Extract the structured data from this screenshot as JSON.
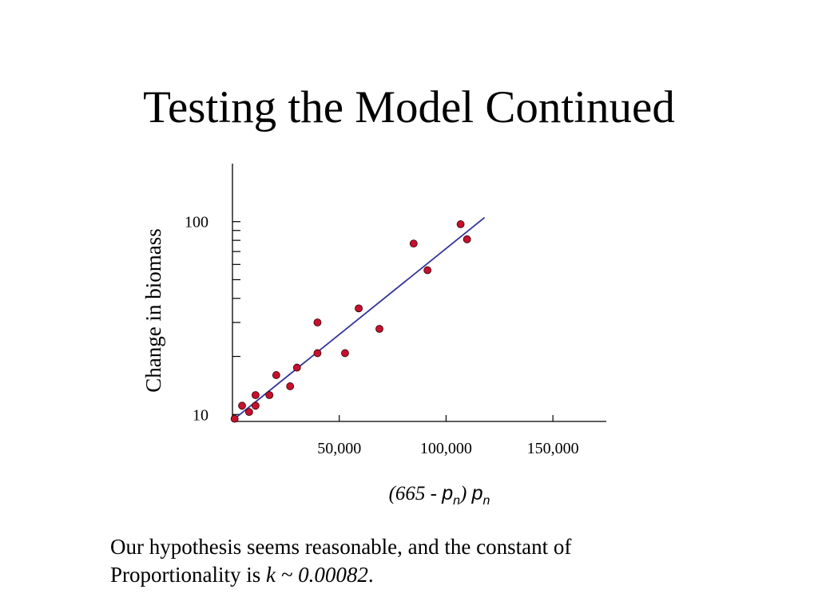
{
  "slide": {
    "title": "Testing the Model Continued",
    "caption_line1": "Our hypothesis seems reasonable, and the constant of",
    "caption_line2_prefix": "Proportionality is ",
    "caption_k": "k ~ 0.00082",
    "caption_suffix": "."
  },
  "chart_data": {
    "type": "scatter",
    "ylabel": "Change in biomass",
    "xlabel_parts": {
      "open": "(665 - ",
      "var1": "p",
      "sub1": "n",
      "close": ") ",
      "var2": "p",
      "sub2": "n"
    },
    "x_scale": "linear",
    "y_scale": "log",
    "xlim": [
      0,
      175000
    ],
    "ylim": [
      9.2,
      200
    ],
    "x_ticks": [
      50000,
      100000,
      150000
    ],
    "x_tick_labels": [
      "50,000",
      "100,000",
      "150,000"
    ],
    "y_ticks": [
      10,
      100
    ],
    "y_tick_labels": [
      "10",
      "100"
    ],
    "grid": false,
    "legend": "none",
    "point_color": "#c8102e",
    "line_color": "#33339a",
    "points": [
      {
        "x": 1000,
        "y": 9.5
      },
      {
        "x": 4500,
        "y": 11.1
      },
      {
        "x": 7800,
        "y": 10.3
      },
      {
        "x": 10800,
        "y": 11.1
      },
      {
        "x": 10800,
        "y": 12.6
      },
      {
        "x": 17300,
        "y": 12.6
      },
      {
        "x": 20500,
        "y": 16.0
      },
      {
        "x": 27000,
        "y": 14.0
      },
      {
        "x": 30200,
        "y": 17.5
      },
      {
        "x": 39800,
        "y": 20.8
      },
      {
        "x": 39800,
        "y": 30.0
      },
      {
        "x": 52700,
        "y": 20.8
      },
      {
        "x": 59100,
        "y": 35.5
      },
      {
        "x": 68800,
        "y": 27.8
      },
      {
        "x": 84800,
        "y": 77.0
      },
      {
        "x": 91300,
        "y": 56.0
      },
      {
        "x": 106800,
        "y": 97.0
      },
      {
        "x": 109800,
        "y": 81.0
      }
    ],
    "fit_line": {
      "x": [
        2000,
        118000
      ],
      "y": [
        9.7,
        105
      ]
    }
  }
}
